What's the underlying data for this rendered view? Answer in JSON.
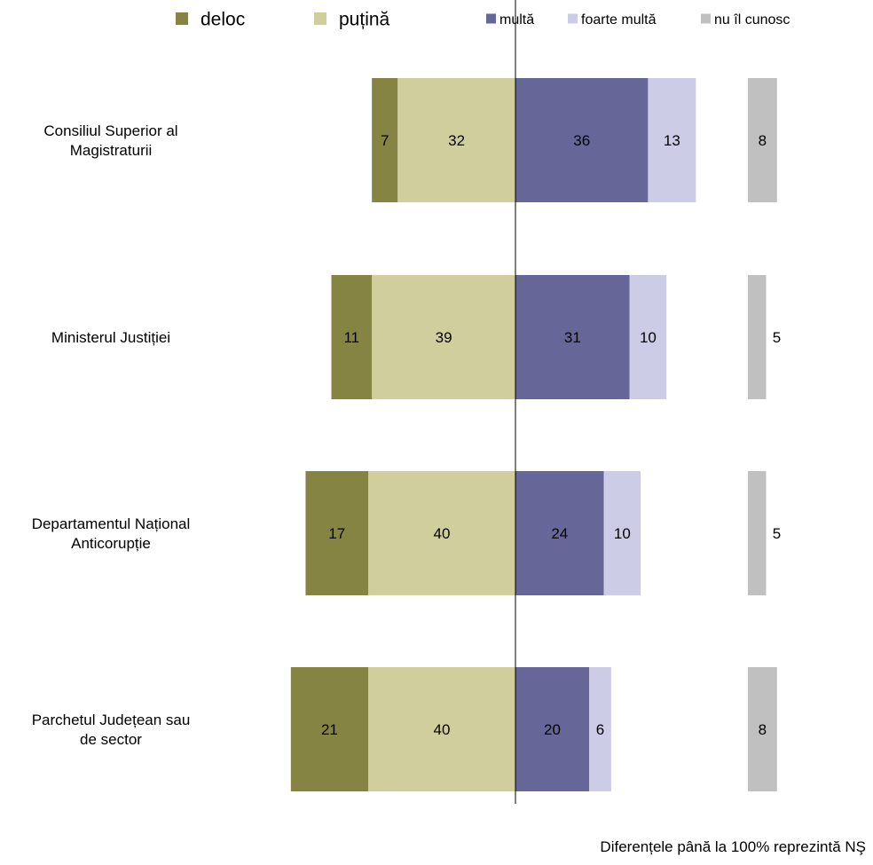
{
  "chart_data": {
    "type": "bar",
    "orientation": "horizontal",
    "stacking": "diverging",
    "categories": [
      "Consiliul Superior al Magistraturii",
      "Ministerul Justiției",
      "Departamentul Național Anticorupție",
      "Parchetul Județean sau de sector"
    ],
    "category_lines": [
      [
        "Consiliul Superior al",
        "Magistraturii"
      ],
      [
        "Ministerul Justiției"
      ],
      [
        "Departamentul Național",
        "Anticorupție"
      ],
      [
        "Parchetul Județean sau",
        "de sector"
      ]
    ],
    "series": [
      {
        "name": "deloc",
        "side": "negative",
        "color": "#868442",
        "values": [
          7,
          11,
          17,
          21
        ]
      },
      {
        "name": "puțină",
        "side": "negative",
        "color": "#d0ce9c",
        "values": [
          32,
          39,
          40,
          40
        ]
      },
      {
        "name": "multă",
        "side": "positive",
        "color": "#666698",
        "values": [
          36,
          31,
          24,
          20
        ]
      },
      {
        "name": "foarte multă",
        "side": "positive",
        "color": "#cccce6",
        "values": [
          13,
          10,
          10,
          6
        ]
      },
      {
        "name": "nu îl cunosc",
        "side": "separate",
        "color": "#c0c0c0",
        "values": [
          8,
          5,
          5,
          8
        ]
      }
    ],
    "legend_position": "top",
    "grid": false,
    "xlabel": "",
    "ylabel": ""
  },
  "footnote": "Diferențele până la 100% reprezintă NŞ"
}
